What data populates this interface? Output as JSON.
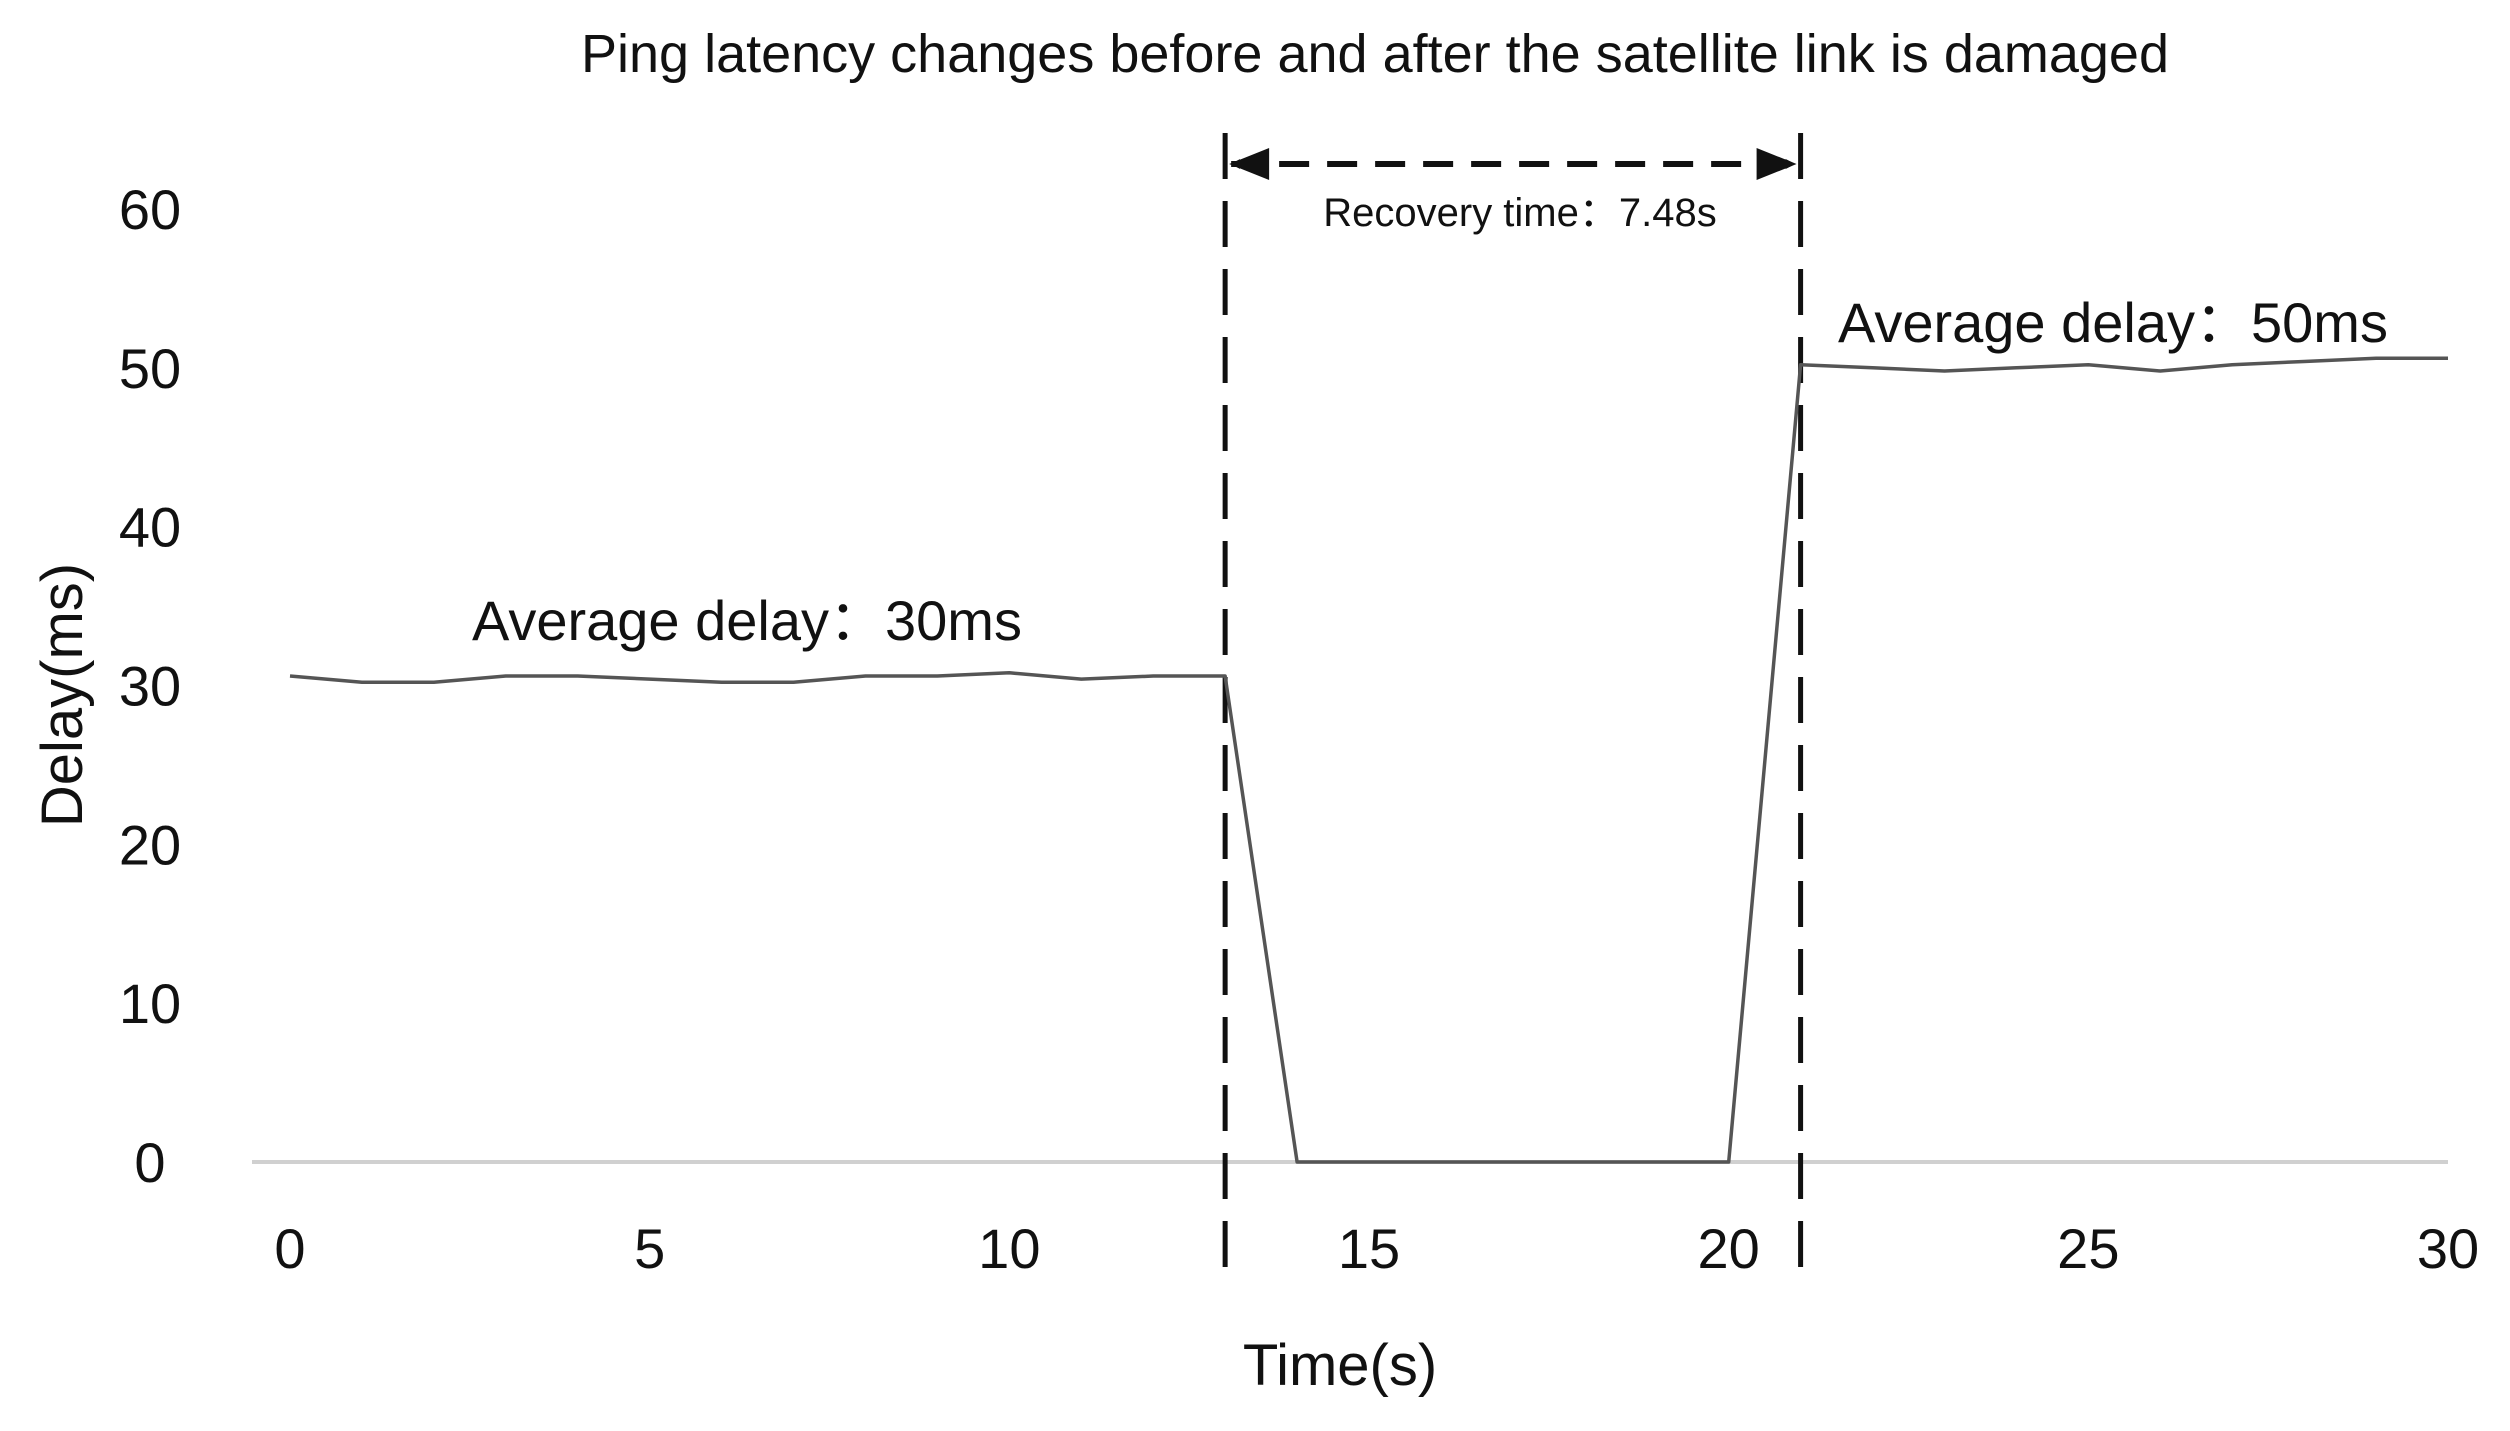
{
  "chart_data": {
    "type": "line",
    "title": "Ping latency changes before and after the satellite link is damaged",
    "xlabel": "Time(s)",
    "ylabel": "Delay(ms)",
    "xlim": [
      0,
      30
    ],
    "ylim": [
      0,
      60
    ],
    "xticks": [
      0,
      5,
      10,
      15,
      20,
      25,
      30
    ],
    "yticks": [
      0,
      10,
      20,
      30,
      40,
      50,
      60
    ],
    "grid": false,
    "series": [
      {
        "color": "#555555",
        "points": [
          [
            0,
            30.6
          ],
          [
            1,
            30.2
          ],
          [
            2,
            30.2
          ],
          [
            3,
            30.6
          ],
          [
            4,
            30.6
          ],
          [
            5,
            30.4
          ],
          [
            6,
            30.2
          ],
          [
            7,
            30.2
          ],
          [
            8,
            30.6
          ],
          [
            9,
            30.6
          ],
          [
            10,
            30.8
          ],
          [
            11,
            30.4
          ],
          [
            12,
            30.6
          ],
          [
            13,
            30.6
          ],
          [
            14,
            0
          ],
          [
            15,
            0
          ],
          [
            16,
            0
          ],
          [
            17,
            0
          ],
          [
            18,
            0
          ],
          [
            19,
            0
          ],
          [
            20,
            0
          ],
          [
            21,
            50.2
          ],
          [
            22,
            50.0
          ],
          [
            23,
            49.8
          ],
          [
            24,
            50.0
          ],
          [
            25,
            50.2
          ],
          [
            26,
            49.8
          ],
          [
            27,
            50.2
          ],
          [
            28,
            50.4
          ],
          [
            29,
            50.6
          ],
          [
            30,
            50.6
          ]
        ]
      }
    ],
    "markers": {
      "start_x": 13,
      "end_x": 21
    },
    "annotations": {
      "recovery": "Recovery time：7.48s",
      "before": "Average delay：30ms",
      "after": "Average delay：50ms"
    }
  }
}
